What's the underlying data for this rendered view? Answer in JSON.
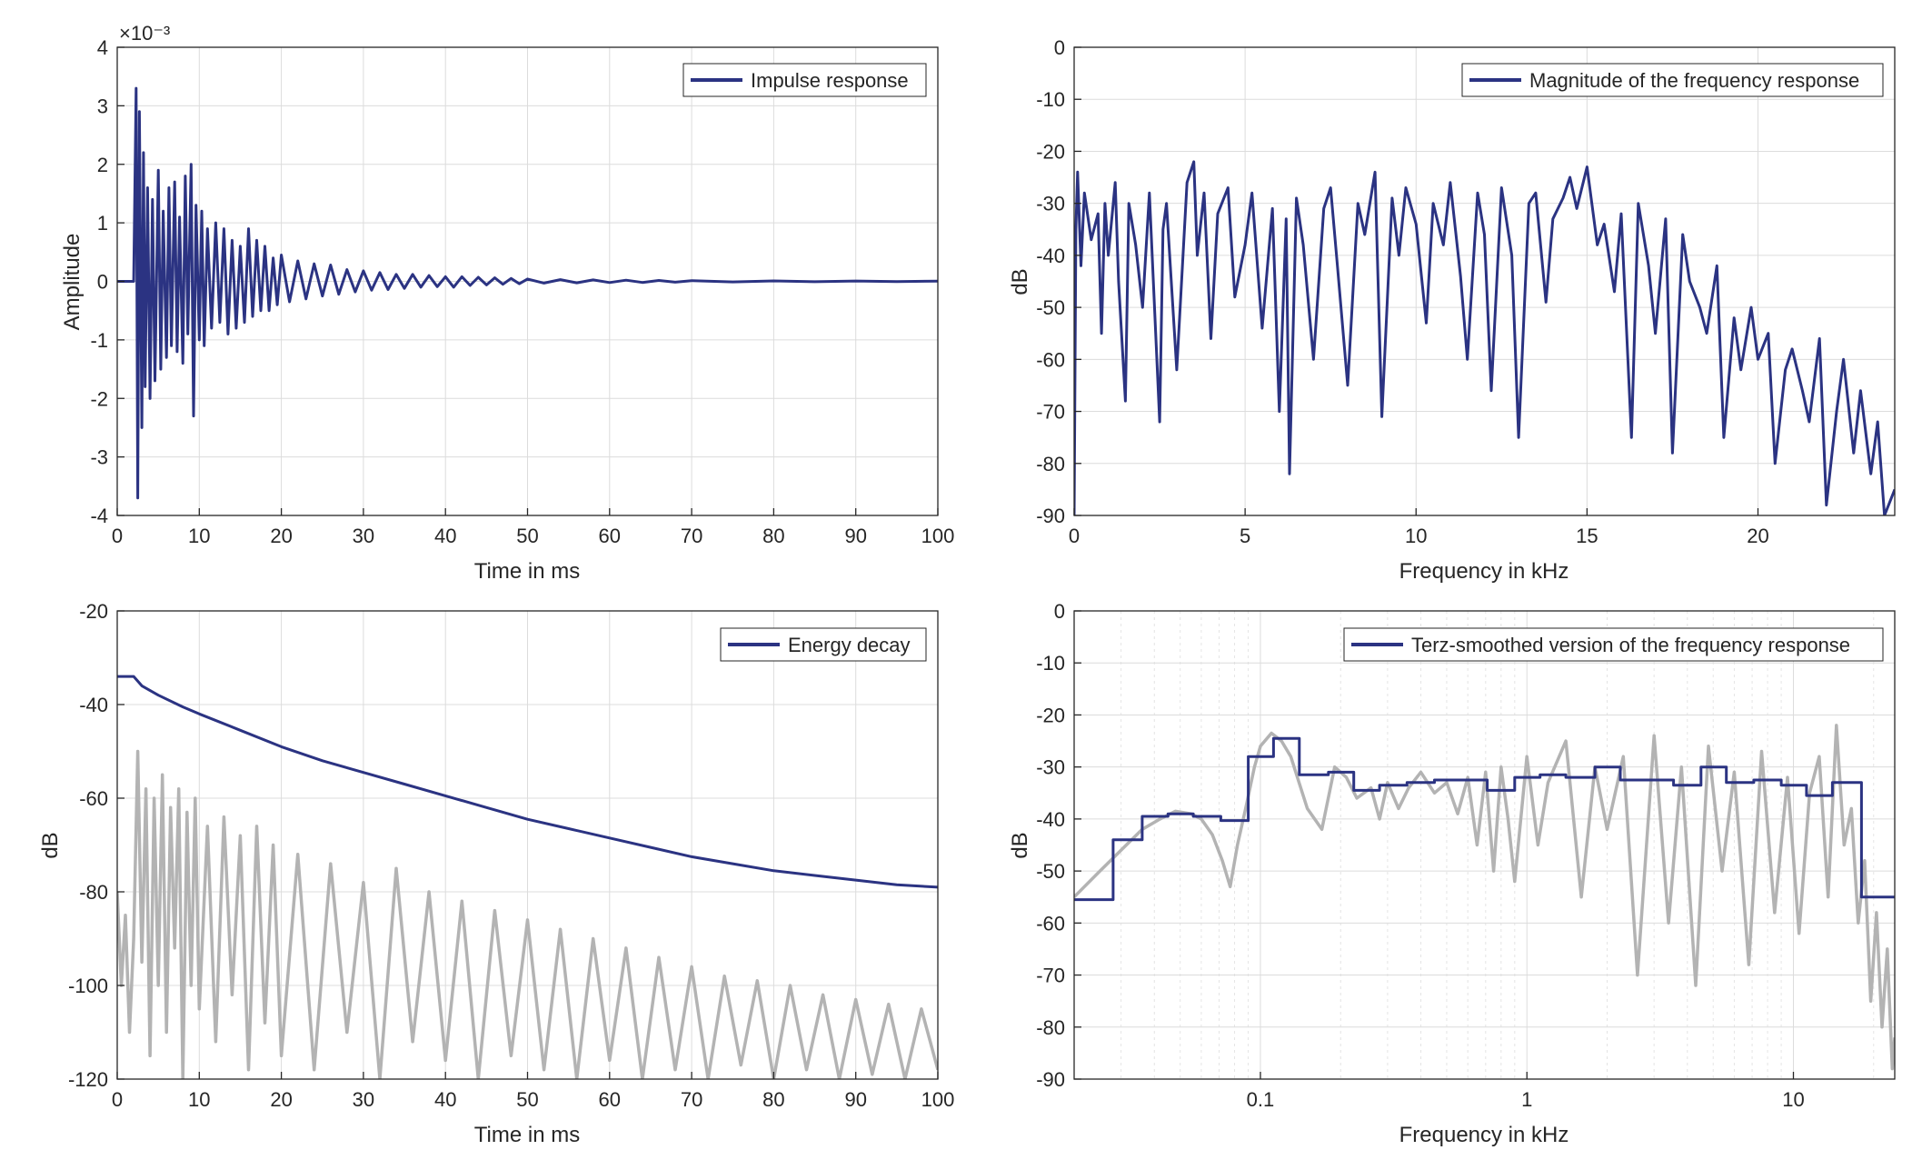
{
  "colors": {
    "main": "#2b3382",
    "gray": "#b3b3b3"
  },
  "chart_data": [
    {
      "id": "impulse",
      "type": "line",
      "xlabel": "Time in ms",
      "ylabel": "Amplitude",
      "xlim": [
        0,
        100
      ],
      "ylim": [
        -4,
        4
      ],
      "y_exponent": "×10⁻³",
      "xticks": [
        "0",
        "10",
        "20",
        "30",
        "40",
        "50",
        "60",
        "70",
        "80",
        "90",
        "100"
      ],
      "yticks": [
        "-4",
        "-3",
        "-2",
        "-1",
        "0",
        "1",
        "2",
        "3",
        "4"
      ],
      "grid": true,
      "legend": {
        "position": "top-right",
        "entries": [
          "Impulse response"
        ]
      },
      "series": [
        {
          "name": "Impulse response",
          "x": [
            0,
            0.5,
            1,
            1.5,
            2,
            2.3,
            2.5,
            2.7,
            3,
            3.2,
            3.4,
            3.7,
            4,
            4.3,
            4.6,
            5,
            5.3,
            5.6,
            6,
            6.3,
            6.6,
            7,
            7.3,
            7.6,
            8,
            8.3,
            8.6,
            9,
            9.3,
            9.6,
            10,
            10.3,
            10.6,
            11,
            11.5,
            12,
            12.5,
            13,
            13.5,
            14,
            14.5,
            15,
            15.5,
            16,
            16.5,
            17,
            17.5,
            18,
            18.5,
            19,
            19.5,
            20,
            21,
            22,
            23,
            24,
            25,
            26,
            27,
            28,
            29,
            30,
            31,
            32,
            33,
            34,
            35,
            36,
            37,
            38,
            39,
            40,
            41,
            42,
            43,
            44,
            45,
            46,
            47,
            48,
            49,
            50,
            52,
            54,
            56,
            58,
            60,
            62,
            64,
            66,
            68,
            70,
            75,
            80,
            85,
            90,
            95,
            100
          ],
          "values": [
            0.0001,
            -0.0001,
            0.0002,
            -0.0003,
            0.0005,
            3.3,
            -3.7,
            2.9,
            -2.5,
            2.2,
            -1.8,
            1.6,
            -2.0,
            1.4,
            -1.7,
            1.9,
            -1.5,
            1.2,
            -1.3,
            1.6,
            -1.1,
            1.7,
            -1.2,
            1.1,
            -1.4,
            1.8,
            -0.9,
            2.0,
            -2.3,
            1.3,
            -1.0,
            1.2,
            -1.1,
            0.9,
            -0.8,
            1.0,
            -0.7,
            0.9,
            -0.9,
            0.7,
            -0.8,
            0.6,
            -0.7,
            0.9,
            -0.6,
            0.7,
            -0.5,
            0.6,
            -0.5,
            0.4,
            -0.4,
            0.45,
            -0.35,
            0.35,
            -0.3,
            0.3,
            -0.25,
            0.28,
            -0.22,
            0.2,
            -0.18,
            0.18,
            -0.15,
            0.15,
            -0.14,
            0.12,
            -0.12,
            0.12,
            -0.1,
            0.1,
            -0.09,
            0.08,
            -0.1,
            0.08,
            -0.07,
            0.07,
            -0.06,
            0.06,
            -0.05,
            0.05,
            -0.04,
            0.04,
            -0.03,
            0.03,
            -0.025,
            0.025,
            -0.02,
            0.02,
            -0.018,
            0.016,
            -0.014,
            0.012,
            -0.01,
            0.008,
            -0.006,
            0.006,
            -0.005,
            0.004
          ]
        }
      ]
    },
    {
      "id": "magnitude",
      "type": "line",
      "xlabel": "Frequency in kHz",
      "ylabel": "dB",
      "xlim": [
        0,
        24
      ],
      "ylim": [
        -90,
        0
      ],
      "xticks": [
        "0",
        "5",
        "10",
        "15",
        "20"
      ],
      "yticks": [
        "0",
        "-10",
        "-20",
        "-30",
        "-40",
        "-50",
        "-60",
        "-70",
        "-80",
        "-90"
      ],
      "grid": true,
      "legend": {
        "position": "top-right",
        "entries": [
          "Magnitude of the frequency response"
        ]
      },
      "series": [
        {
          "name": "Magnitude of the frequency response",
          "x": [
            0,
            0.05,
            0.1,
            0.2,
            0.3,
            0.5,
            0.7,
            0.8,
            0.9,
            1.0,
            1.2,
            1.3,
            1.5,
            1.6,
            1.8,
            2.0,
            2.2,
            2.5,
            2.6,
            2.7,
            3.0,
            3.3,
            3.5,
            3.6,
            3.8,
            4.0,
            4.2,
            4.5,
            4.7,
            5.0,
            5.2,
            5.5,
            5.8,
            6.0,
            6.2,
            6.3,
            6.5,
            6.7,
            7.0,
            7.3,
            7.5,
            7.7,
            8.0,
            8.3,
            8.5,
            8.8,
            9.0,
            9.3,
            9.5,
            9.7,
            10.0,
            10.3,
            10.5,
            10.8,
            11.0,
            11.3,
            11.5,
            11.8,
            12.0,
            12.2,
            12.5,
            12.8,
            13.0,
            13.3,
            13.5,
            13.8,
            14.0,
            14.3,
            14.5,
            14.7,
            15.0,
            15.3,
            15.5,
            15.8,
            16.0,
            16.3,
            16.5,
            16.8,
            17.0,
            17.3,
            17.5,
            17.8,
            18.0,
            18.3,
            18.5,
            18.8,
            19.0,
            19.3,
            19.5,
            19.8,
            20.0,
            20.3,
            20.5,
            20.8,
            21.0,
            21.3,
            21.5,
            21.8,
            22.0,
            22.3,
            22.5,
            22.8,
            23.0,
            23.3,
            23.5,
            23.7,
            24.0
          ],
          "values": [
            -90,
            -35,
            -24,
            -42,
            -28,
            -37,
            -32,
            -55,
            -30,
            -40,
            -26,
            -45,
            -68,
            -30,
            -38,
            -50,
            -28,
            -72,
            -35,
            -30,
            -62,
            -26,
            -22,
            -40,
            -28,
            -56,
            -32,
            -27,
            -48,
            -38,
            -28,
            -54,
            -31,
            -70,
            -33,
            -82,
            -29,
            -38,
            -60,
            -31,
            -27,
            -42,
            -65,
            -30,
            -36,
            -24,
            -71,
            -29,
            -40,
            -27,
            -34,
            -53,
            -30,
            -38,
            -26,
            -44,
            -60,
            -28,
            -36,
            -66,
            -27,
            -40,
            -75,
            -30,
            -28,
            -49,
            -33,
            -29,
            -25,
            -31,
            -23,
            -38,
            -34,
            -47,
            -32,
            -75,
            -30,
            -42,
            -55,
            -33,
            -78,
            -36,
            -45,
            -50,
            -55,
            -42,
            -75,
            -52,
            -62,
            -50,
            -60,
            -55,
            -80,
            -62,
            -58,
            -66,
            -72,
            -56,
            -88,
            -70,
            -60,
            -78,
            -66,
            -82,
            -72,
            -90,
            -85
          ]
        }
      ]
    },
    {
      "id": "energy",
      "type": "line",
      "xlabel": "Time in ms",
      "ylabel": "dB",
      "xlim": [
        0,
        100
      ],
      "ylim": [
        -120,
        -20
      ],
      "xticks": [
        "0",
        "10",
        "20",
        "30",
        "40",
        "50",
        "60",
        "70",
        "80",
        "90",
        "100"
      ],
      "yticks": [
        "-20",
        "-40",
        "-60",
        "-80",
        "-100",
        "-120"
      ],
      "grid": true,
      "legend": {
        "position": "top-right",
        "entries": [
          "Energy decay"
        ]
      },
      "series": [
        {
          "name": "Energy decay",
          "x": [
            0,
            2,
            3,
            5,
            8,
            10,
            15,
            20,
            25,
            30,
            35,
            40,
            45,
            50,
            55,
            60,
            65,
            70,
            75,
            80,
            85,
            90,
            95,
            100
          ],
          "values": [
            -34,
            -34,
            -36,
            -38,
            -40.5,
            -42,
            -45.5,
            -49,
            -52,
            -54.5,
            -57,
            -59.5,
            -62,
            -64.5,
            -66.5,
            -68.5,
            -70.5,
            -72.5,
            -74,
            -75.5,
            -76.5,
            -77.5,
            -78.5,
            -79
          ]
        },
        {
          "name": "",
          "x": [
            0,
            0.5,
            1,
            1.5,
            2,
            2.5,
            3,
            3.5,
            4,
            4.5,
            5,
            5.5,
            6,
            6.5,
            7,
            7.5,
            8,
            8.5,
            9,
            9.5,
            10,
            11,
            12,
            13,
            14,
            15,
            16,
            17,
            18,
            19,
            20,
            22,
            24,
            26,
            28,
            30,
            32,
            34,
            36,
            38,
            40,
            42,
            44,
            46,
            48,
            50,
            52,
            54,
            56,
            58,
            60,
            62,
            64,
            66,
            68,
            70,
            72,
            74,
            76,
            78,
            80,
            82,
            84,
            86,
            88,
            90,
            92,
            94,
            96,
            98,
            100
          ],
          "values": [
            -80,
            -100,
            -85,
            -110,
            -90,
            -50,
            -95,
            -58,
            -115,
            -60,
            -100,
            -55,
            -110,
            -62,
            -92,
            -58,
            -120,
            -63,
            -100,
            -60,
            -105,
            -66,
            -112,
            -64,
            -102,
            -68,
            -118,
            -66,
            -108,
            -70,
            -115,
            -72,
            -118,
            -74,
            -110,
            -78,
            -120,
            -75,
            -112,
            -80,
            -116,
            -82,
            -120,
            -84,
            -115,
            -86,
            -118,
            -88,
            -120,
            -90,
            -116,
            -92,
            -120,
            -94,
            -118,
            -96,
            -120,
            -98,
            -117,
            -99,
            -120,
            -100,
            -118,
            -102,
            -120,
            -103,
            -119,
            -104,
            -120,
            -105,
            -118
          ]
        }
      ]
    },
    {
      "id": "terz",
      "type": "line",
      "xlabel": "Frequency in kHz",
      "ylabel": "dB",
      "xscale": "log",
      "xlim": [
        0.02,
        24
      ],
      "ylim": [
        -90,
        0
      ],
      "xticks": [
        "0.1",
        "1",
        "10"
      ],
      "yticks": [
        "0",
        "-10",
        "-20",
        "-30",
        "-40",
        "-50",
        "-60",
        "-70",
        "-80",
        "-90"
      ],
      "grid": true,
      "legend": {
        "position": "top-right",
        "entries": [
          "Terz-smoothed version of the frequency response"
        ]
      },
      "series": [
        {
          "name": "Terz-smoothed version of the frequency response",
          "x": [
            0.02,
            0.028,
            0.028,
            0.036,
            0.036,
            0.045,
            0.045,
            0.056,
            0.056,
            0.071,
            0.071,
            0.09,
            0.09,
            0.112,
            0.112,
            0.14,
            0.14,
            0.18,
            0.18,
            0.224,
            0.224,
            0.28,
            0.28,
            0.355,
            0.355,
            0.45,
            0.45,
            0.56,
            0.56,
            0.71,
            0.71,
            0.9,
            0.9,
            1.12,
            1.12,
            1.4,
            1.4,
            1.8,
            1.8,
            2.24,
            2.24,
            2.8,
            2.8,
            3.55,
            3.55,
            4.5,
            4.5,
            5.6,
            5.6,
            7.1,
            7.1,
            9.0,
            9.0,
            11.2,
            11.2,
            14.0,
            14.0,
            18.0,
            18.0,
            24.0
          ],
          "values": [
            -55.5,
            -55.5,
            -44,
            -44,
            -39.5,
            -39.5,
            -39,
            -39,
            -39.5,
            -39.5,
            -40.3,
            -40.3,
            -28,
            -28,
            -24.5,
            -24.5,
            -31.5,
            -31.5,
            -31,
            -31,
            -34.5,
            -34.5,
            -33.5,
            -33.5,
            -33,
            -33,
            -32.5,
            -32.5,
            -32.5,
            -32.5,
            -34.5,
            -34.5,
            -32,
            -32,
            -31.5,
            -31.5,
            -32,
            -32,
            -30,
            -30,
            -32.5,
            -32.5,
            -32.5,
            -32.5,
            -33.5,
            -33.5,
            -30,
            -30,
            -33,
            -33,
            -32.5,
            -32.5,
            -33.5,
            -33.5,
            -35.5,
            -35.5,
            -33,
            -33,
            -55,
            -55
          ]
        },
        {
          "name": "",
          "x": [
            0.02,
            0.025,
            0.03,
            0.036,
            0.042,
            0.048,
            0.055,
            0.06,
            0.066,
            0.072,
            0.077,
            0.082,
            0.088,
            0.095,
            0.1,
            0.11,
            0.12,
            0.13,
            0.15,
            0.17,
            0.19,
            0.21,
            0.23,
            0.26,
            0.28,
            0.3,
            0.33,
            0.36,
            0.4,
            0.45,
            0.5,
            0.55,
            0.6,
            0.65,
            0.7,
            0.75,
            0.8,
            0.85,
            0.9,
            1.0,
            1.1,
            1.2,
            1.4,
            1.6,
            1.8,
            2.0,
            2.3,
            2.6,
            3.0,
            3.4,
            3.8,
            4.3,
            4.8,
            5.4,
            6.0,
            6.8,
            7.6,
            8.5,
            9.5,
            10.5,
            11.5,
            12.5,
            13.5,
            14.5,
            15.5,
            16.5,
            17.5,
            18.5,
            19.5,
            20.5,
            21.5,
            22.5,
            23.5,
            24.0
          ],
          "values": [
            -55,
            -50,
            -46,
            -42,
            -40,
            -38.5,
            -39,
            -40,
            -43,
            -48,
            -53,
            -45,
            -38,
            -30,
            -26,
            -23.5,
            -25,
            -28,
            -38,
            -42,
            -30,
            -32,
            -36,
            -34,
            -40,
            -33,
            -38,
            -34,
            -31,
            -35,
            -33,
            -39,
            -32,
            -45,
            -31,
            -50,
            -30,
            -40,
            -52,
            -28,
            -45,
            -33,
            -25,
            -55,
            -30,
            -42,
            -28,
            -70,
            -24,
            -60,
            -30,
            -72,
            -26,
            -50,
            -31,
            -68,
            -27,
            -58,
            -32,
            -62,
            -35,
            -28,
            -55,
            -22,
            -45,
            -38,
            -60,
            -48,
            -75,
            -58,
            -80,
            -65,
            -88,
            -82
          ]
        }
      ]
    }
  ]
}
